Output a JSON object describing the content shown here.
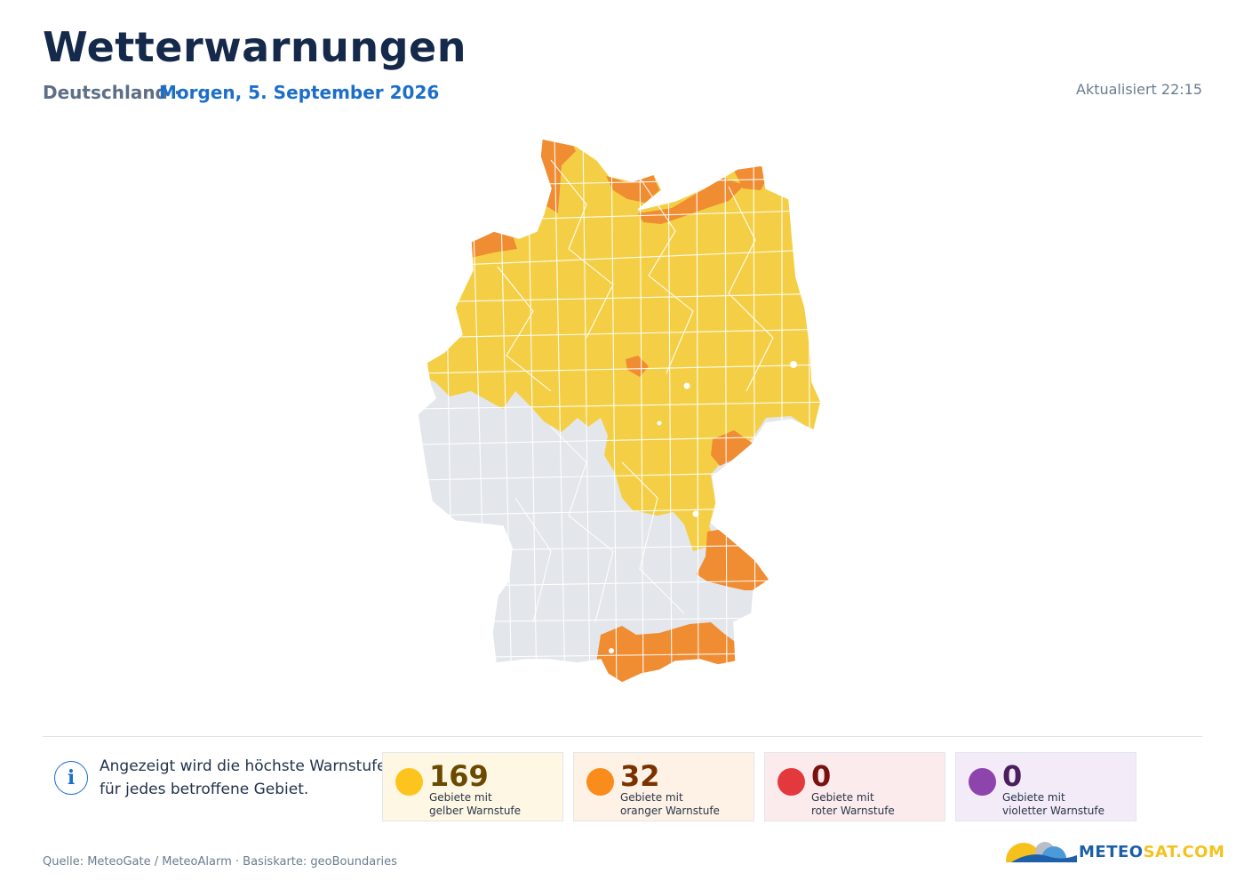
{
  "header": {
    "title": "Wetterwarnungen",
    "region": "Deutschland ·",
    "date_label": "Morgen, 5. September 2026",
    "updated": "Aktualisiert 22:15"
  },
  "map": {
    "colors": {
      "yellow": "#f4cf45",
      "orange": "#f08c32",
      "no_warning": "#e3e6eb",
      "border": "#ffffff"
    }
  },
  "info": {
    "icon": "info-icon",
    "icon_glyph": "i",
    "line1": "Angezeigt wird die höchste Warnstufe",
    "line2": "für jedes betroffene Gebiet."
  },
  "legend": [
    {
      "count": "169",
      "label1": "Gebiete mit",
      "label2": "gelber Warnstufe",
      "color": "#fdc41d",
      "text_color": "#6b4a00"
    },
    {
      "count": "32",
      "label1": "Gebiete mit",
      "label2": "oranger Warnstufe",
      "color": "#f98c1b",
      "text_color": "#7a3300"
    },
    {
      "count": "0",
      "label1": "Gebiete mit",
      "label2": "roter Warnstufe",
      "color": "#e3393c",
      "text_color": "#7a1010"
    },
    {
      "count": "0",
      "label1": "Gebiete mit",
      "label2": "violetter Warnstufe",
      "color": "#8e44ad",
      "text_color": "#4a1f5e"
    }
  ],
  "footer": {
    "source": "Quelle: MeteoGate / MeteoAlarm · Basiskarte: geoBoundaries",
    "brand_main": "METEO",
    "brand_accent": "SAT.COM"
  }
}
